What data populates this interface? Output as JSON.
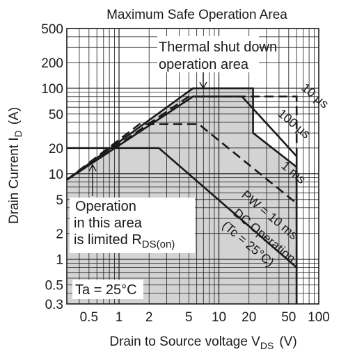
{
  "chart_data": {
    "type": "line",
    "title": "Maximum Safe Operation Area",
    "xlabel": {
      "main": "Drain to Source voltage V",
      "sub": "DS",
      "unit": "(V)"
    },
    "ylabel": {
      "main": "Drain Current  I",
      "sub": "D",
      "unit": "(A)"
    },
    "x_scale": "log",
    "y_scale": "log",
    "xlim": [
      0.3,
      100
    ],
    "ylim": [
      0.3,
      500
    ],
    "x_ticks": [
      {
        "v": 0.5,
        "label": "0.5"
      },
      {
        "v": 1,
        "label": "1"
      },
      {
        "v": 2,
        "label": "2"
      },
      {
        "v": 5,
        "label": "5"
      },
      {
        "v": 10,
        "label": "10"
      },
      {
        "v": 20,
        "label": "20"
      },
      {
        "v": 50,
        "label": "50"
      },
      {
        "v": 100,
        "label": "100"
      }
    ],
    "y_ticks": [
      {
        "v": 0.3,
        "label": "0.3"
      },
      {
        "v": 0.5,
        "label": "0.5"
      },
      {
        "v": 1,
        "label": "1"
      },
      {
        "v": 2,
        "label": "2"
      },
      {
        "v": 5,
        "label": "5"
      },
      {
        "v": 10,
        "label": "10"
      },
      {
        "v": 20,
        "label": "20"
      },
      {
        "v": 50,
        "label": "50"
      },
      {
        "v": 100,
        "label": "100"
      },
      {
        "v": 200,
        "label": "200"
      },
      {
        "v": 500,
        "label": "500"
      }
    ],
    "grid": true,
    "safe_area_fill": "#d3d3d3",
    "series": [
      {
        "name": "10 µs",
        "style": "dashed",
        "points": [
          [
            0.3,
            8.5
          ],
          [
            5.5,
            80
          ],
          [
            60,
            80
          ],
          [
            60,
            0.3
          ]
        ]
      },
      {
        "name": "100 µs",
        "style": "solid",
        "points": [
          [
            0.3,
            8.5
          ],
          [
            5.5,
            80
          ],
          [
            17,
            80
          ],
          [
            60,
            16
          ],
          [
            60,
            0.3
          ]
        ]
      },
      {
        "name": "1 ms",
        "style": "dashed",
        "points": [
          [
            0.3,
            8.5
          ],
          [
            1.6,
            38
          ],
          [
            6.3,
            38
          ],
          [
            60,
            4.5
          ]
        ]
      },
      {
        "name": "PW = 10 ms",
        "style": "dashed",
        "points": [
          [
            0.3,
            8.5
          ],
          [
            5.0,
            80
          ],
          [
            9.5,
            80
          ]
        ]
      },
      {
        "name": "DC Operation (Tc = 25°C)",
        "style": "solid",
        "points": [
          [
            0.3,
            20
          ],
          [
            2.5,
            20
          ],
          [
            60,
            0.8
          ]
        ]
      },
      {
        "name": "",
        "style": "solid",
        "points": [
          [
            0.3,
            8.5
          ],
          [
            5.5,
            100
          ],
          [
            22,
            100
          ],
          [
            22,
            30
          ],
          [
            60,
            12
          ],
          [
            60,
            0.3
          ]
        ]
      }
    ],
    "annotations": {
      "thermal_line1": "Thermal shut down",
      "thermal_line2": "operation area",
      "op_line1": "Operation",
      "op_line2": "in this area",
      "op_line3_main": "is limited R",
      "op_line3_sub": "DS(on)",
      "ta": "Ta = 25°C",
      "lbl_10us": "10 µs",
      "lbl_100us": "100 µs",
      "lbl_1ms": "1 ms",
      "lbl_pw": "PW = 10 ms",
      "lbl_dc1": "DC Operation",
      "lbl_dc2": "(Tc = 25°C)"
    }
  }
}
